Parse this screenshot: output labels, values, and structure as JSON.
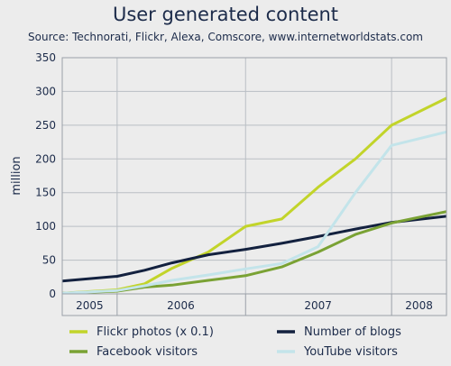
{
  "chart_data": {
    "type": "line",
    "title": "User generated content",
    "subtitle": "Source: Technorati, Flickr, Alexa, Comscore, www.internetworldstats.com",
    "ylabel": "million",
    "ylim": [
      0,
      350
    ],
    "yticks": [
      0,
      50,
      100,
      150,
      200,
      250,
      300,
      350
    ],
    "xlim": [
      2005.0,
      2008.5
    ],
    "year_boundaries": [
      2005.0,
      2005.5,
      2006.67,
      2008.0,
      2008.5
    ],
    "x_year_labels": [
      {
        "label": "2005",
        "x": 2005.25
      },
      {
        "label": "2006",
        "x": 2006.08
      },
      {
        "label": "2007",
        "x": 2007.33
      },
      {
        "label": "2008",
        "x": 2008.25
      }
    ],
    "grid": true,
    "legend": "bottom",
    "series": [
      {
        "name": "Flickr photos (x 0.1)",
        "color": "#c2d42a",
        "x": [
          2005.0,
          2005.5,
          2005.75,
          2006.0,
          2006.33,
          2006.67,
          2007.0,
          2007.33,
          2007.67,
          2008.0,
          2008.5
        ],
        "y": [
          1,
          6,
          15,
          38,
          62,
          100,
          111,
          158,
          200,
          250,
          290
        ]
      },
      {
        "name": "Number of blogs",
        "color": "#13213f",
        "x": [
          2005.0,
          2005.5,
          2005.75,
          2006.0,
          2006.33,
          2006.67,
          2007.0,
          2007.33,
          2007.67,
          2008.0,
          2008.5
        ],
        "y": [
          19,
          26,
          35,
          46,
          58,
          66,
          75,
          85,
          96,
          106,
          115
        ]
      },
      {
        "name": "Facebook visitors",
        "color": "#7aa234",
        "x": [
          2005.0,
          2005.5,
          2005.75,
          2006.0,
          2006.33,
          2006.67,
          2007.0,
          2007.33,
          2007.67,
          2008.0,
          2008.5
        ],
        "y": [
          1,
          4,
          10,
          13,
          20,
          27,
          40,
          62,
          88,
          105,
          122
        ]
      },
      {
        "name": "YouTube visitors",
        "color": "#c3e4ea",
        "x": [
          2005.0,
          2005.5,
          2005.75,
          2006.0,
          2006.33,
          2006.67,
          2007.0,
          2007.33,
          2007.67,
          2008.0,
          2008.5
        ],
        "y": [
          1,
          5,
          12,
          20,
          28,
          37,
          45,
          70,
          150,
          220,
          240
        ]
      }
    ]
  }
}
